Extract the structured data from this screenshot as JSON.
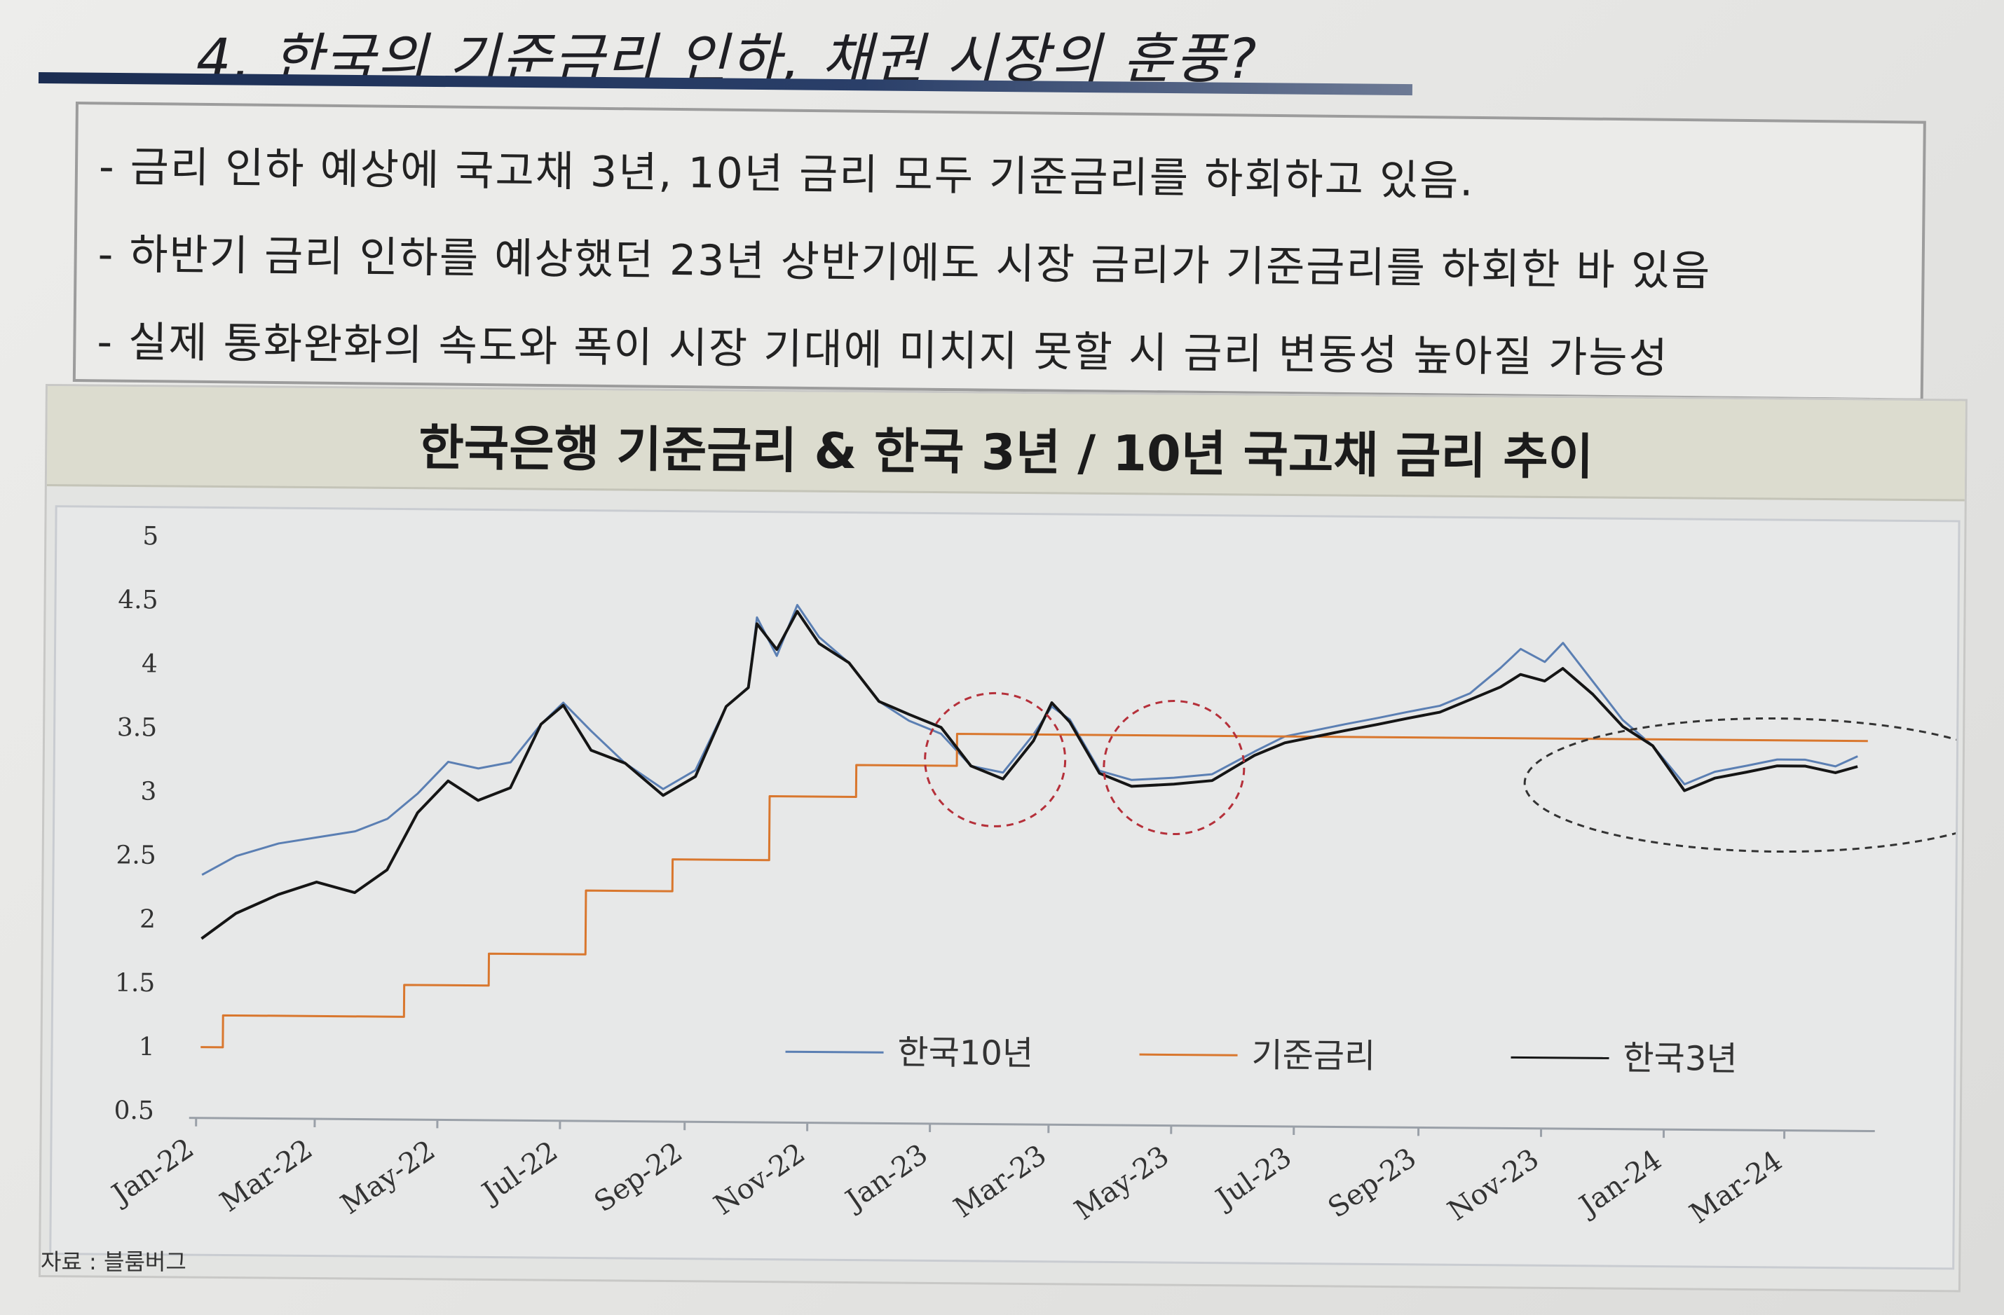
{
  "slide": {
    "title": "4. 한국의 기준금리 인하, 채권 시장의 훈풍?",
    "bullets": [
      "- 금리 인하 예상에 국고채 3년, 10년 금리 모두 기준금리를 하회하고 있음.",
      "- 하반기 금리 인하를 예상했던 23년 상반기에도 시장 금리가 기준금리를 하회한 바 있음",
      "- 실제 통화완화의 속도와 폭이 시장 기대에 미치지 못할 시 금리 변동성 높아질 가능성"
    ],
    "source": "자료 : 블룸버그"
  },
  "colors": {
    "ktb10": "#5b7fb3",
    "base": "#d9772e",
    "ktb3": "#151515",
    "highlight_circle": "#b5303a"
  },
  "chart_data": {
    "type": "line",
    "title": "한국은행 기준금리 & 한국 3년 / 10년 국고채 금리 추이",
    "xlabel": "",
    "ylabel": "",
    "ylim": [
      0.5,
      5
    ],
    "yticks": [
      "0.5",
      "1",
      "1.5",
      "2",
      "2.5",
      "3",
      "3.5",
      "4",
      "4.5",
      "5"
    ],
    "xlim": [
      "2022-01-01",
      "2024-04-15"
    ],
    "xticks": [
      {
        "date": "2022-01-01",
        "label": "Jan-22"
      },
      {
        "date": "2022-03-01",
        "label": "Mar-22"
      },
      {
        "date": "2022-05-01",
        "label": "May-22"
      },
      {
        "date": "2022-07-01",
        "label": "Jul-22"
      },
      {
        "date": "2022-09-01",
        "label": "Sep-22"
      },
      {
        "date": "2022-11-01",
        "label": "Nov-22"
      },
      {
        "date": "2023-01-01",
        "label": "Jan-23"
      },
      {
        "date": "2023-03-01",
        "label": "Mar-23"
      },
      {
        "date": "2023-05-01",
        "label": "May-23"
      },
      {
        "date": "2023-07-01",
        "label": "Jul-23"
      },
      {
        "date": "2023-09-01",
        "label": "Sep-23"
      },
      {
        "date": "2023-11-01",
        "label": "Nov-23"
      },
      {
        "date": "2024-01-01",
        "label": "Jan-24"
      },
      {
        "date": "2024-03-01",
        "label": "Mar-24"
      }
    ],
    "legend_position": "lower-right",
    "series": [
      {
        "name": "한국10년",
        "color": "#5b7fb3",
        "points": [
          [
            "2022-01-03",
            2.35
          ],
          [
            "2022-01-20",
            2.5
          ],
          [
            "2022-02-10",
            2.6
          ],
          [
            "2022-03-01",
            2.65
          ],
          [
            "2022-03-20",
            2.7
          ],
          [
            "2022-04-05",
            2.8
          ],
          [
            "2022-04-20",
            3.0
          ],
          [
            "2022-05-05",
            3.25
          ],
          [
            "2022-05-20",
            3.2
          ],
          [
            "2022-06-05",
            3.25
          ],
          [
            "2022-06-20",
            3.55
          ],
          [
            "2022-07-01",
            3.72
          ],
          [
            "2022-07-15",
            3.5
          ],
          [
            "2022-08-01",
            3.25
          ],
          [
            "2022-08-20",
            3.05
          ],
          [
            "2022-09-05",
            3.2
          ],
          [
            "2022-09-20",
            3.7
          ],
          [
            "2022-10-01",
            3.85
          ],
          [
            "2022-10-05",
            4.4
          ],
          [
            "2022-10-15",
            4.1
          ],
          [
            "2022-10-25",
            4.5
          ],
          [
            "2022-11-05",
            4.25
          ],
          [
            "2022-11-20",
            4.05
          ],
          [
            "2022-12-05",
            3.75
          ],
          [
            "2022-12-20",
            3.6
          ],
          [
            "2023-01-05",
            3.5
          ],
          [
            "2023-01-20",
            3.25
          ],
          [
            "2023-02-05",
            3.2
          ],
          [
            "2023-02-20",
            3.5
          ],
          [
            "2023-03-01",
            3.72
          ],
          [
            "2023-03-10",
            3.62
          ],
          [
            "2023-03-25",
            3.22
          ],
          [
            "2023-04-10",
            3.15
          ],
          [
            "2023-05-01",
            3.17
          ],
          [
            "2023-05-20",
            3.2
          ],
          [
            "2023-06-10",
            3.38
          ],
          [
            "2023-06-25",
            3.5
          ],
          [
            "2023-07-10",
            3.55
          ],
          [
            "2023-07-25",
            3.6
          ],
          [
            "2023-08-10",
            3.65
          ],
          [
            "2023-08-25",
            3.7
          ],
          [
            "2023-09-10",
            3.75
          ],
          [
            "2023-09-25",
            3.85
          ],
          [
            "2023-10-10",
            4.05
          ],
          [
            "2023-10-20",
            4.2
          ],
          [
            "2023-11-01",
            4.1
          ],
          [
            "2023-11-10",
            4.25
          ],
          [
            "2023-11-25",
            3.95
          ],
          [
            "2023-12-10",
            3.65
          ],
          [
            "2023-12-25",
            3.45
          ],
          [
            "2024-01-10",
            3.15
          ],
          [
            "2024-01-25",
            3.25
          ],
          [
            "2024-02-10",
            3.3
          ],
          [
            "2024-02-25",
            3.35
          ],
          [
            "2024-03-10",
            3.35
          ],
          [
            "2024-03-25",
            3.3
          ],
          [
            "2024-04-05",
            3.38
          ]
        ]
      },
      {
        "name": "기준금리",
        "color": "#d9772e",
        "points": [
          [
            "2022-01-03",
            1.0
          ],
          [
            "2022-01-14",
            1.0
          ],
          [
            "2022-01-14",
            1.25
          ],
          [
            "2022-04-14",
            1.25
          ],
          [
            "2022-04-14",
            1.5
          ],
          [
            "2022-05-26",
            1.5
          ],
          [
            "2022-05-26",
            1.75
          ],
          [
            "2022-07-13",
            1.75
          ],
          [
            "2022-07-13",
            2.25
          ],
          [
            "2022-08-25",
            2.25
          ],
          [
            "2022-08-25",
            2.5
          ],
          [
            "2022-10-12",
            2.5
          ],
          [
            "2022-10-12",
            3.0
          ],
          [
            "2022-11-24",
            3.0
          ],
          [
            "2022-11-24",
            3.25
          ],
          [
            "2023-01-13",
            3.25
          ],
          [
            "2023-01-13",
            3.5
          ],
          [
            "2024-04-10",
            3.5
          ]
        ]
      },
      {
        "name": "한국3년",
        "color": "#151515",
        "points": [
          [
            "2022-01-03",
            1.85
          ],
          [
            "2022-01-20",
            2.05
          ],
          [
            "2022-02-10",
            2.2
          ],
          [
            "2022-03-01",
            2.3
          ],
          [
            "2022-03-20",
            2.22
          ],
          [
            "2022-04-05",
            2.4
          ],
          [
            "2022-04-20",
            2.85
          ],
          [
            "2022-05-05",
            3.1
          ],
          [
            "2022-05-20",
            2.95
          ],
          [
            "2022-06-05",
            3.05
          ],
          [
            "2022-06-20",
            3.55
          ],
          [
            "2022-07-01",
            3.7
          ],
          [
            "2022-07-15",
            3.35
          ],
          [
            "2022-08-01",
            3.25
          ],
          [
            "2022-08-20",
            3.0
          ],
          [
            "2022-09-05",
            3.15
          ],
          [
            "2022-09-20",
            3.7
          ],
          [
            "2022-10-01",
            3.85
          ],
          [
            "2022-10-05",
            4.35
          ],
          [
            "2022-10-15",
            4.15
          ],
          [
            "2022-10-25",
            4.45
          ],
          [
            "2022-11-05",
            4.2
          ],
          [
            "2022-11-20",
            4.05
          ],
          [
            "2022-12-05",
            3.75
          ],
          [
            "2022-12-20",
            3.65
          ],
          [
            "2023-01-05",
            3.55
          ],
          [
            "2023-01-20",
            3.25
          ],
          [
            "2023-02-05",
            3.15
          ],
          [
            "2023-02-20",
            3.45
          ],
          [
            "2023-03-01",
            3.75
          ],
          [
            "2023-03-10",
            3.6
          ],
          [
            "2023-03-25",
            3.2
          ],
          [
            "2023-04-10",
            3.1
          ],
          [
            "2023-05-01",
            3.12
          ],
          [
            "2023-05-20",
            3.15
          ],
          [
            "2023-06-10",
            3.35
          ],
          [
            "2023-06-25",
            3.45
          ],
          [
            "2023-07-10",
            3.5
          ],
          [
            "2023-07-25",
            3.55
          ],
          [
            "2023-08-10",
            3.6
          ],
          [
            "2023-08-25",
            3.65
          ],
          [
            "2023-09-10",
            3.7
          ],
          [
            "2023-09-25",
            3.8
          ],
          [
            "2023-10-10",
            3.9
          ],
          [
            "2023-10-20",
            4.0
          ],
          [
            "2023-11-01",
            3.95
          ],
          [
            "2023-11-10",
            4.05
          ],
          [
            "2023-11-25",
            3.85
          ],
          [
            "2023-12-10",
            3.6
          ],
          [
            "2023-12-25",
            3.45
          ],
          [
            "2024-01-10",
            3.1
          ],
          [
            "2024-01-25",
            3.2
          ],
          [
            "2024-02-10",
            3.25
          ],
          [
            "2024-02-25",
            3.3
          ],
          [
            "2024-03-10",
            3.3
          ],
          [
            "2024-03-25",
            3.25
          ],
          [
            "2024-04-05",
            3.3
          ]
        ]
      }
    ],
    "annotations": [
      {
        "type": "dashed-circle",
        "center_date": "2023-02-01",
        "center_y": 3.3,
        "color": "#b5303a"
      },
      {
        "type": "dashed-circle",
        "center_date": "2023-05-01",
        "center_y": 3.25,
        "color": "#b5303a"
      },
      {
        "type": "dashed-ellipse",
        "center_date": "2024-02-25",
        "center_y": 3.15,
        "color": "#333333"
      }
    ]
  }
}
